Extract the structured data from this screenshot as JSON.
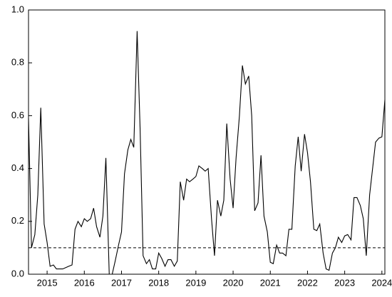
{
  "chart_data": {
    "type": "line",
    "x": [
      2015,
      2015.08,
      2015.17,
      2015.25,
      2015.33,
      2015.42,
      2015.5,
      2015.58,
      2015.67,
      2015.75,
      2015.83,
      2015.92,
      2016,
      2016.08,
      2016.17,
      2016.25,
      2016.33,
      2016.42,
      2016.5,
      2016.58,
      2016.67,
      2016.75,
      2016.83,
      2016.92,
      2017,
      2017.08,
      2017.17,
      2017.25,
      2017.33,
      2017.42,
      2017.5,
      2017.58,
      2017.67,
      2017.75,
      2017.83,
      2017.92,
      2018,
      2018.08,
      2018.17,
      2018.25,
      2018.33,
      2018.42,
      2018.5,
      2018.58,
      2018.67,
      2018.75,
      2018.83,
      2018.92,
      2019,
      2019.08,
      2019.17,
      2019.25,
      2019.33,
      2019.42,
      2019.5,
      2019.58,
      2019.67,
      2019.75,
      2019.83,
      2019.92,
      2020,
      2020.08,
      2020.17,
      2020.25,
      2020.33,
      2020.42,
      2020.5,
      2020.58,
      2020.67,
      2020.75,
      2020.83,
      2020.92,
      2021,
      2021.08,
      2021.17,
      2021.25,
      2021.33,
      2021.42,
      2021.5,
      2021.58,
      2021.67,
      2021.75,
      2021.83,
      2021.92,
      2022,
      2022.08,
      2022.17,
      2022.25,
      2022.33,
      2022.42,
      2022.5,
      2022.58,
      2022.67,
      2022.75,
      2022.83,
      2022.92,
      2023,
      2023.08,
      2023.17,
      2023.25,
      2023.33,
      2023.42,
      2023.5,
      2023.58,
      2023.67,
      2023.75,
      2023.83,
      2023.92,
      2024,
      2024.08,
      2024.17,
      2024.25,
      2024.33,
      2024.42,
      2024.5,
      2024.58
    ],
    "values": [
      0.59,
      0.1,
      0.15,
      0.3,
      0.63,
      0.19,
      0.12,
      0.03,
      0.035,
      0.02,
      0.02,
      0.02,
      0.025,
      0.03,
      0.035,
      0.17,
      0.2,
      0.18,
      0.21,
      0.2,
      0.21,
      0.25,
      0.18,
      0.14,
      0.22,
      0.44,
      0.0,
      0.0,
      0.05,
      0.11,
      0.16,
      0.38,
      0.47,
      0.51,
      0.48,
      0.92,
      0.55,
      0.07,
      0.04,
      0.055,
      0.02,
      0.02,
      0.08,
      0.06,
      0.03,
      0.055,
      0.055,
      0.03,
      0.05,
      0.35,
      0.28,
      0.36,
      0.35,
      0.36,
      0.37,
      0.41,
      0.4,
      0.39,
      0.4,
      0.21,
      0.07,
      0.28,
      0.22,
      0.28,
      0.57,
      0.36,
      0.25,
      0.44,
      0.6,
      0.79,
      0.72,
      0.75,
      0.6,
      0.24,
      0.27,
      0.45,
      0.22,
      0.16,
      0.045,
      0.04,
      0.11,
      0.08,
      0.08,
      0.07,
      0.17,
      0.17,
      0.41,
      0.52,
      0.39,
      0.53,
      0.46,
      0.35,
      0.17,
      0.165,
      0.19,
      0.08,
      0.02,
      0.015,
      0.08,
      0.1,
      0.14,
      0.12,
      0.145,
      0.15,
      0.13,
      0.29,
      0.29,
      0.26,
      0.21,
      0.07,
      0.3,
      0.4,
      0.5,
      0.515,
      0.52,
      0.66
    ],
    "color": "#000000",
    "reference_line": 0.1,
    "xlim": [
      2015,
      2024.58
    ],
    "xticks": [
      {
        "value": 2015.5,
        "label": "2015"
      },
      {
        "value": 2016.5,
        "label": "2016"
      },
      {
        "value": 2017.5,
        "label": "2017"
      },
      {
        "value": 2018.5,
        "label": "2018"
      },
      {
        "value": 2019.5,
        "label": "2019"
      },
      {
        "value": 2020.5,
        "label": "2020"
      },
      {
        "value": 2021.5,
        "label": "2021"
      },
      {
        "value": 2022.5,
        "label": "2022"
      },
      {
        "value": 2023.5,
        "label": "2023"
      },
      {
        "value": 2024.5,
        "label": "2024"
      }
    ],
    "ylim": [
      0,
      1
    ],
    "yticks": [
      {
        "value": 0,
        "label": "0.0"
      },
      0.2,
      0.4,
      0.6,
      0.8,
      {
        "value": 1,
        "label": "1.0"
      }
    ]
  }
}
